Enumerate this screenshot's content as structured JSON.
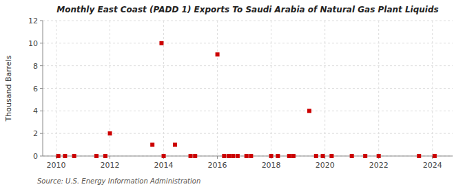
{
  "chart_data": {
    "type": "scatter",
    "title": "Monthly East Coast (PADD 1) Exports To Saudi Arabia of Natural Gas Plant Liquids",
    "y_label": "Thousand Barrels",
    "annotations": [
      "Source: U.S. Energy Information Administration"
    ],
    "color": "#cc0000",
    "marker": "square",
    "grid": true,
    "xlim": [
      2009.5,
      2024.75
    ],
    "ylim": [
      0,
      12
    ],
    "xticks": [
      2010,
      2012,
      2014,
      2016,
      2018,
      2020,
      2022,
      2024
    ],
    "yticks": [
      0,
      2,
      4,
      6,
      8,
      10,
      12
    ],
    "x": [
      2010.08,
      2010.33,
      2010.67,
      2011.5,
      2011.83,
      2012.0,
      2013.58,
      2013.92,
      2014.0,
      2014.42,
      2015.0,
      2015.17,
      2016.0,
      2016.25,
      2016.42,
      2016.58,
      2016.75,
      2017.08,
      2017.25,
      2018.0,
      2018.25,
      2018.67,
      2018.83,
      2019.42,
      2019.67,
      2019.92,
      2020.25,
      2021.0,
      2021.5,
      2022.0,
      2023.5,
      2024.08
    ],
    "values": [
      0,
      0,
      0,
      0,
      0,
      2,
      1,
      10,
      0,
      1,
      0,
      0,
      9,
      0,
      0,
      0,
      0,
      0,
      0,
      0,
      0,
      0,
      0,
      4,
      0,
      0,
      0,
      0,
      0,
      0,
      0,
      0
    ]
  }
}
